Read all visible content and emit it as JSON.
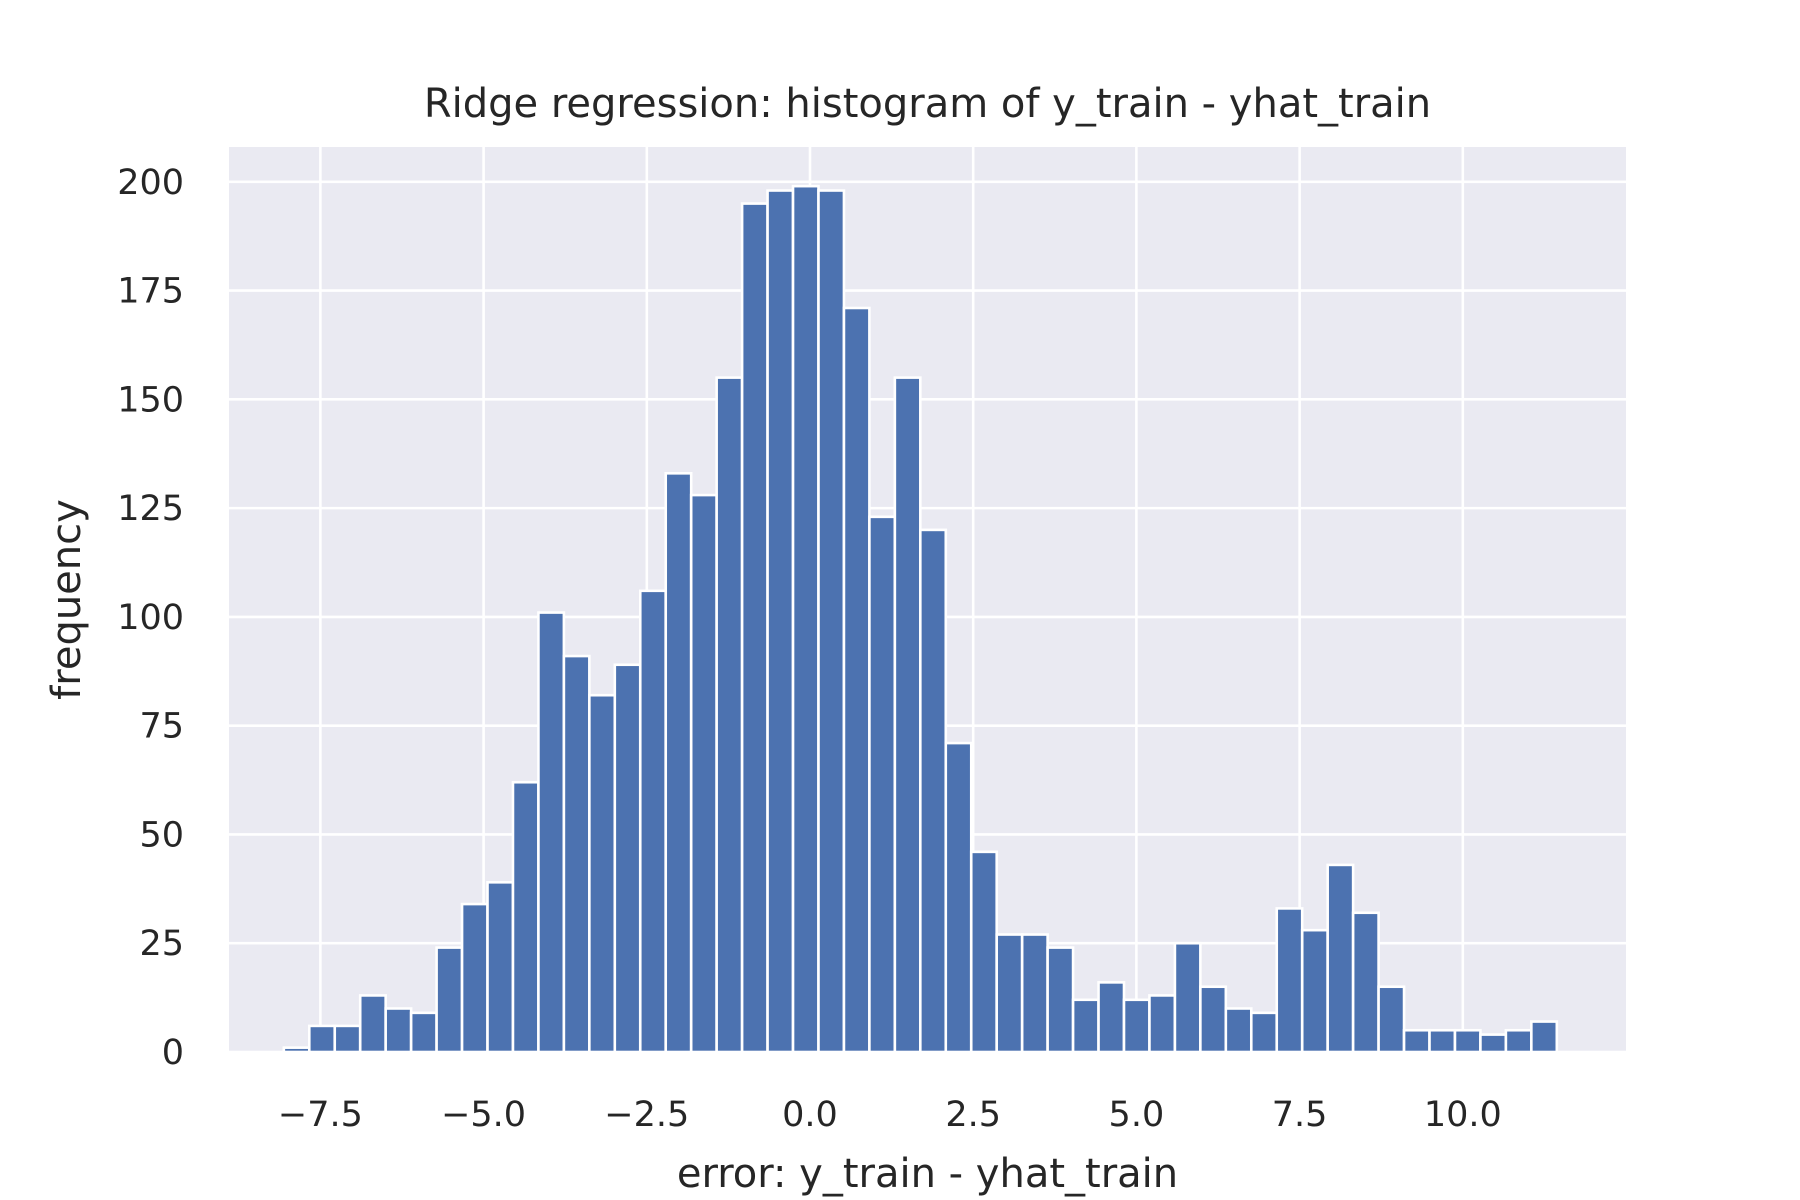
{
  "chart_data": {
    "type": "bar",
    "title": "Ridge regression: histogram of y_train - yhat_train",
    "xlabel": "error: y_train - yhat_train",
    "ylabel": "frequency",
    "xlim": [
      -8.9,
      12.5
    ],
    "ylim": [
      0,
      208
    ],
    "grid": true,
    "style": {
      "plot_background": "#eaeaf2",
      "bar_color": "#4c72b0",
      "bar_edge_color": "#ffffff",
      "grid_color": "#ffffff",
      "text_color": "#262626"
    },
    "bin_start": -8.06,
    "bin_width": 0.39,
    "values": [
      1,
      6,
      6,
      13,
      10,
      9,
      24,
      34,
      39,
      62,
      101,
      91,
      82,
      89,
      106,
      133,
      128,
      155,
      195,
      198,
      199,
      198,
      171,
      123,
      155,
      120,
      71,
      46,
      27,
      27,
      24,
      12,
      16,
      12,
      13,
      25,
      15,
      10,
      9,
      33,
      28,
      43,
      32,
      15,
      5,
      5,
      5,
      4,
      5,
      7
    ],
    "x_ticks": [
      {
        "value": -7.5,
        "label": "−7.5"
      },
      {
        "value": -5.0,
        "label": "−5.0"
      },
      {
        "value": -2.5,
        "label": "−2.5"
      },
      {
        "value": 0.0,
        "label": "0.0"
      },
      {
        "value": 2.5,
        "label": "2.5"
      },
      {
        "value": 5.0,
        "label": "5.0"
      },
      {
        "value": 7.5,
        "label": "7.5"
      },
      {
        "value": 10.0,
        "label": "10.0"
      }
    ],
    "y_ticks": [
      {
        "value": 0,
        "label": "0"
      },
      {
        "value": 25,
        "label": "25"
      },
      {
        "value": 50,
        "label": "50"
      },
      {
        "value": 75,
        "label": "75"
      },
      {
        "value": 100,
        "label": "100"
      },
      {
        "value": 125,
        "label": "125"
      },
      {
        "value": 150,
        "label": "150"
      },
      {
        "value": 175,
        "label": "175"
      },
      {
        "value": 200,
        "label": "200"
      }
    ]
  }
}
